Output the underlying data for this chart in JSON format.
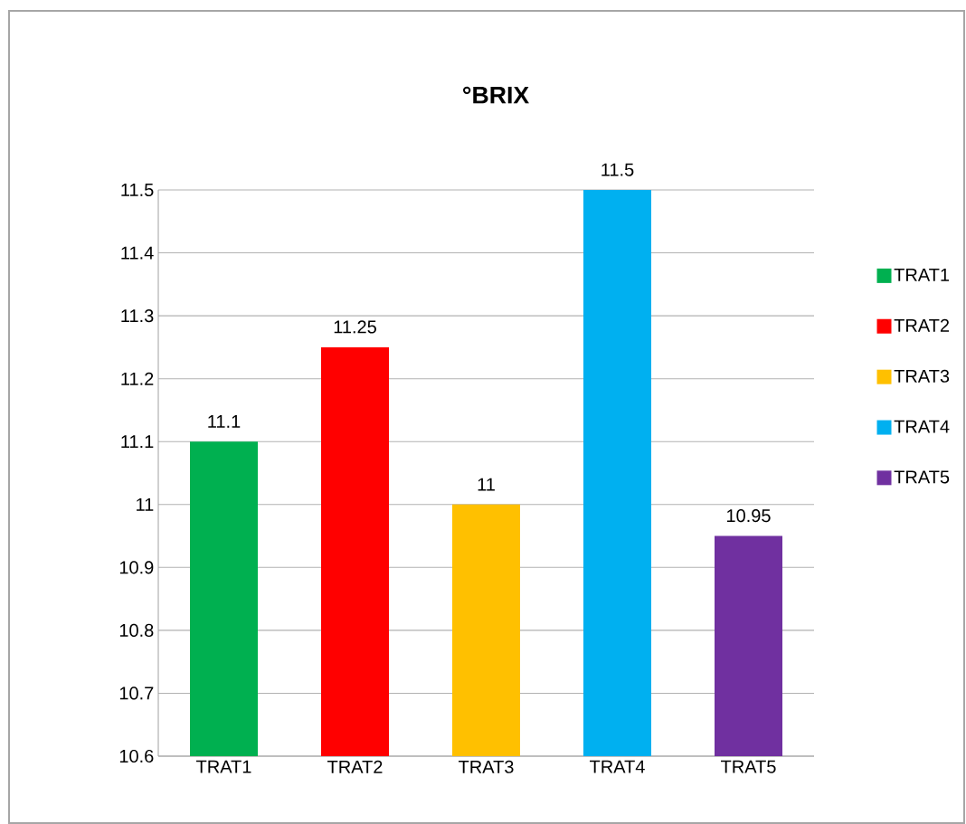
{
  "chart_data": {
    "type": "bar",
    "title": "°BRIX",
    "categories": [
      "TRAT1",
      "TRAT2",
      "TRAT3",
      "TRAT4",
      "TRAT5"
    ],
    "series": [
      {
        "name": "TRAT1",
        "color": "#00b050",
        "values": [
          11.1,
          null,
          null,
          null,
          null
        ]
      },
      {
        "name": "TRAT2",
        "color": "#ff0000",
        "values": [
          null,
          11.25,
          null,
          null,
          null
        ]
      },
      {
        "name": "TRAT3",
        "color": "#ffc000",
        "values": [
          null,
          null,
          11,
          null,
          null
        ]
      },
      {
        "name": "TRAT4",
        "color": "#00b0f0",
        "values": [
          null,
          null,
          null,
          11.5,
          null
        ]
      },
      {
        "name": "TRAT5",
        "color": "#7030a0",
        "values": [
          null,
          null,
          null,
          null,
          10.95
        ]
      }
    ],
    "ylim": [
      10.6,
      11.5
    ],
    "yticks": [
      10.6,
      10.7,
      10.8,
      10.9,
      11,
      11.1,
      11.2,
      11.3,
      11.4,
      11.5
    ],
    "grid": "y",
    "legend": "right",
    "data_labels": true
  }
}
